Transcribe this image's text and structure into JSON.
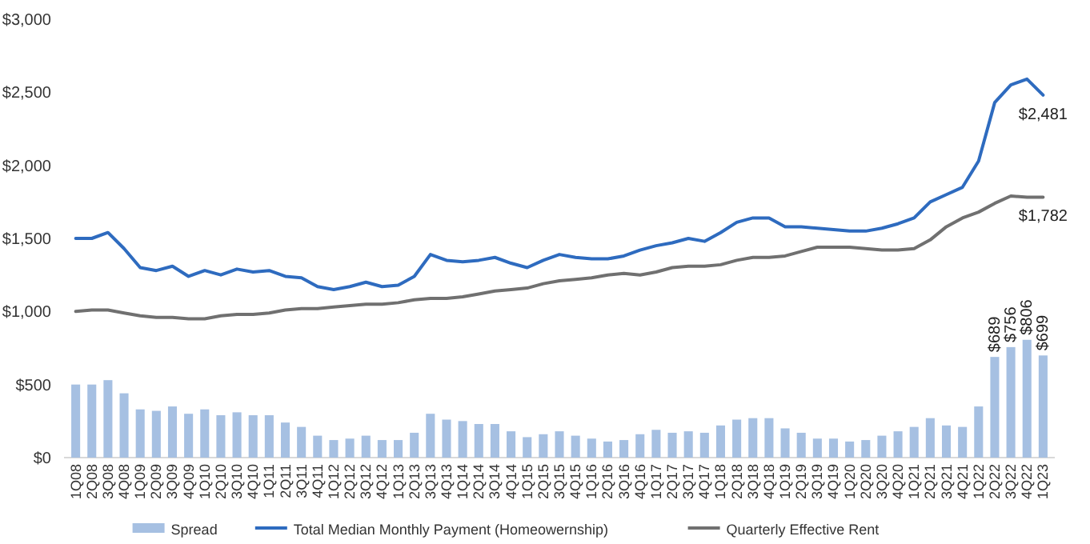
{
  "chart_data": {
    "type": "bar",
    "categories": [
      "1Q08",
      "2Q08",
      "3Q08",
      "4Q08",
      "1Q09",
      "2Q09",
      "3Q09",
      "4Q09",
      "1Q10",
      "2Q10",
      "3Q10",
      "4Q10",
      "1Q11",
      "2Q11",
      "3Q11",
      "4Q11",
      "1Q12",
      "2Q12",
      "3Q12",
      "4Q12",
      "1Q13",
      "2Q13",
      "3Q13",
      "4Q13",
      "1Q14",
      "2Q14",
      "3Q14",
      "4Q14",
      "1Q15",
      "2Q15",
      "3Q15",
      "4Q15",
      "1Q16",
      "2Q16",
      "3Q16",
      "4Q16",
      "1Q17",
      "2Q17",
      "3Q17",
      "4Q17",
      "1Q18",
      "2Q18",
      "3Q18",
      "4Q18",
      "1Q19",
      "2Q19",
      "3Q19",
      "4Q19",
      "1Q20",
      "2Q20",
      "3Q20",
      "4Q20",
      "1Q21",
      "2Q21",
      "3Q21",
      "4Q21",
      "1Q22",
      "2Q22",
      "3Q22",
      "4Q22",
      "1Q23"
    ],
    "series": [
      {
        "name": "Spread",
        "color": "#a6c0e2",
        "values": [
          500,
          500,
          530,
          440,
          330,
          320,
          350,
          300,
          330,
          290,
          310,
          290,
          290,
          240,
          210,
          150,
          120,
          130,
          150,
          120,
          120,
          170,
          300,
          260,
          250,
          230,
          230,
          180,
          140,
          160,
          180,
          150,
          130,
          110,
          120,
          160,
          190,
          170,
          180,
          170,
          220,
          260,
          270,
          270,
          200,
          170,
          130,
          130,
          110,
          120,
          150,
          180,
          210,
          270,
          220,
          210,
          350,
          689,
          756,
          806,
          699
        ],
        "value_labels": [
          null,
          null,
          null,
          null,
          null,
          null,
          null,
          null,
          null,
          null,
          null,
          null,
          null,
          null,
          null,
          null,
          null,
          null,
          null,
          null,
          null,
          null,
          null,
          null,
          null,
          null,
          null,
          null,
          null,
          null,
          null,
          null,
          null,
          null,
          null,
          null,
          null,
          null,
          null,
          null,
          null,
          null,
          null,
          null,
          null,
          null,
          null,
          null,
          null,
          null,
          null,
          null,
          null,
          null,
          null,
          null,
          null,
          "$689",
          "$756",
          "$806",
          "$699"
        ]
      },
      {
        "name": "Total Median Monthly Payment (Homeowernship)",
        "type": "line",
        "color": "#2e6bbf",
        "values": [
          1500,
          1500,
          1540,
          1430,
          1300,
          1280,
          1310,
          1240,
          1280,
          1250,
          1290,
          1270,
          1280,
          1240,
          1230,
          1170,
          1150,
          1170,
          1200,
          1170,
          1180,
          1240,
          1390,
          1350,
          1340,
          1350,
          1370,
          1330,
          1300,
          1350,
          1390,
          1370,
          1360,
          1360,
          1380,
          1420,
          1450,
          1470,
          1500,
          1480,
          1540,
          1610,
          1640,
          1640,
          1580,
          1580,
          1570,
          1560,
          1550,
          1550,
          1570,
          1600,
          1640,
          1750,
          1800,
          1850,
          2030,
          2430,
          2550,
          2590,
          2481
        ],
        "value_labels": [
          null,
          null,
          null,
          null,
          null,
          null,
          null,
          null,
          null,
          null,
          null,
          null,
          null,
          null,
          null,
          null,
          null,
          null,
          null,
          null,
          null,
          null,
          null,
          null,
          null,
          null,
          null,
          null,
          null,
          null,
          null,
          null,
          null,
          null,
          null,
          null,
          null,
          null,
          null,
          null,
          null,
          null,
          null,
          null,
          null,
          null,
          null,
          null,
          null,
          null,
          null,
          null,
          null,
          null,
          null,
          null,
          null,
          null,
          null,
          null,
          "$2,481"
        ]
      },
      {
        "name": "Quarterly Effective Rent",
        "type": "line",
        "color": "#707070",
        "values": [
          1000,
          1010,
          1010,
          990,
          970,
          960,
          960,
          950,
          950,
          970,
          980,
          980,
          990,
          1010,
          1020,
          1020,
          1030,
          1040,
          1050,
          1050,
          1060,
          1080,
          1090,
          1090,
          1100,
          1120,
          1140,
          1150,
          1160,
          1190,
          1210,
          1220,
          1230,
          1250,
          1260,
          1250,
          1270,
          1300,
          1310,
          1310,
          1320,
          1350,
          1370,
          1370,
          1380,
          1410,
          1440,
          1440,
          1440,
          1430,
          1420,
          1420,
          1430,
          1490,
          1580,
          1640,
          1680,
          1740,
          1790,
          1782,
          1782
        ],
        "value_labels": [
          null,
          null,
          null,
          null,
          null,
          null,
          null,
          null,
          null,
          null,
          null,
          null,
          null,
          null,
          null,
          null,
          null,
          null,
          null,
          null,
          null,
          null,
          null,
          null,
          null,
          null,
          null,
          null,
          null,
          null,
          null,
          null,
          null,
          null,
          null,
          null,
          null,
          null,
          null,
          null,
          null,
          null,
          null,
          null,
          null,
          null,
          null,
          null,
          null,
          null,
          null,
          null,
          null,
          null,
          null,
          null,
          null,
          null,
          null,
          null,
          "$1,782"
        ]
      }
    ],
    "ylim": [
      0,
      3000
    ],
    "yticks": [
      {
        "value": 0,
        "label": "$0"
      },
      {
        "value": 500,
        "label": "$500"
      },
      {
        "value": 1000,
        "label": "$1,000"
      },
      {
        "value": 1500,
        "label": "$1,500"
      },
      {
        "value": 2000,
        "label": "$2,000"
      },
      {
        "value": 2500,
        "label": "$2,500"
      },
      {
        "value": 3000,
        "label": "$3,000"
      }
    ],
    "grid": false,
    "legend": "bottom"
  }
}
